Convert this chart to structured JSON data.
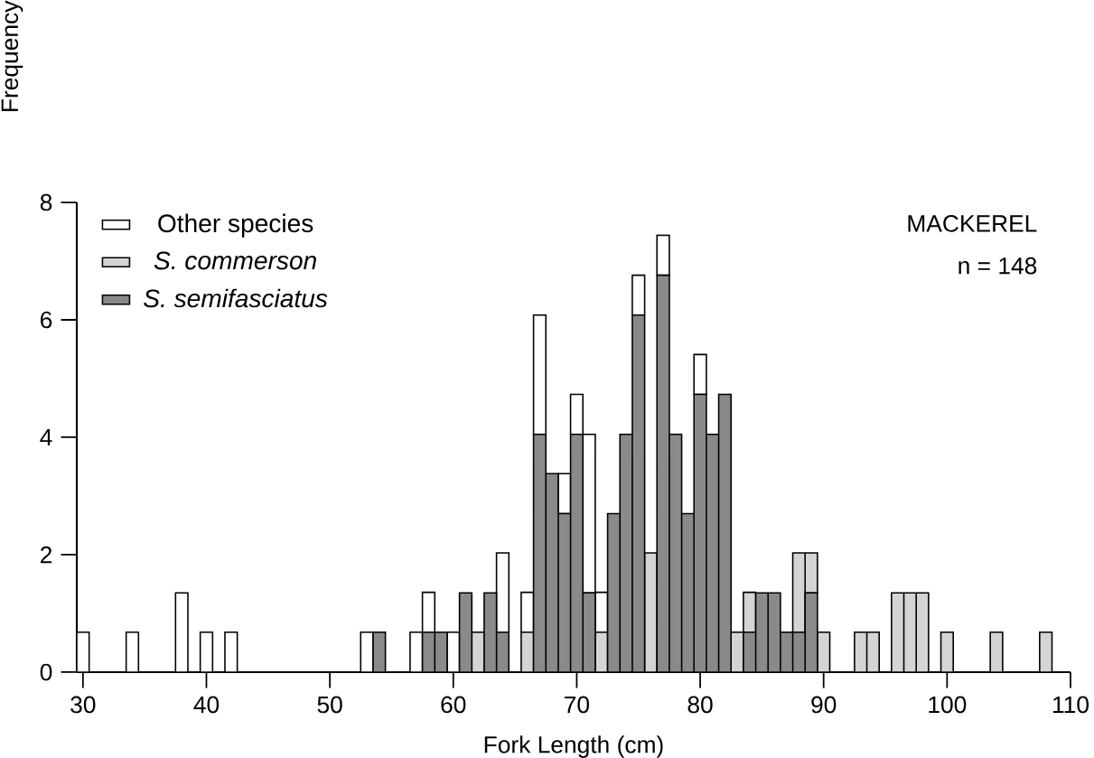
{
  "chart_data": {
    "type": "bar",
    "xlabel": "Fork  Length  (cm)",
    "ylabel": "Frequency",
    "annotations": [
      "MACKEREL",
      "n = 148"
    ],
    "x": [
      30,
      31,
      32,
      33,
      34,
      35,
      36,
      37,
      38,
      39,
      40,
      41,
      42,
      43,
      44,
      45,
      46,
      47,
      48,
      49,
      50,
      51,
      52,
      53,
      54,
      55,
      56,
      57,
      58,
      59,
      60,
      61,
      62,
      63,
      64,
      65,
      66,
      67,
      68,
      69,
      70,
      71,
      72,
      73,
      74,
      75,
      76,
      77,
      78,
      79,
      80,
      81,
      82,
      83,
      84,
      85,
      86,
      87,
      88,
      89,
      90,
      91,
      92,
      93,
      94,
      95,
      96,
      97,
      98,
      99,
      100,
      101,
      102,
      103,
      104,
      105,
      106,
      107,
      108
    ],
    "stacked": true,
    "series": [
      {
        "name": "S. semifasciatus",
        "color": "#8a8a8a",
        "values": [
          0,
          0,
          0,
          0,
          0,
          0,
          0,
          0,
          0,
          0,
          0,
          0,
          0,
          0,
          0,
          0,
          0,
          0,
          0,
          0,
          0,
          0,
          0,
          0,
          0.68,
          0,
          0,
          0,
          0.68,
          0.68,
          0,
          1.35,
          0,
          1.35,
          0.68,
          0,
          0,
          4.05,
          3.38,
          2.7,
          4.05,
          1.35,
          0,
          2.7,
          4.05,
          6.08,
          0,
          6.76,
          4.05,
          2.7,
          4.73,
          4.05,
          4.73,
          0,
          0.68,
          1.35,
          1.35,
          0.68,
          0.68,
          1.35,
          0,
          0,
          0,
          0,
          0,
          0,
          0,
          0,
          0,
          0,
          0,
          0,
          0,
          0,
          0,
          0,
          0,
          0,
          0
        ]
      },
      {
        "name": "S. commerson",
        "color": "#d4d4d4",
        "values": [
          0,
          0,
          0,
          0,
          0,
          0,
          0,
          0,
          0,
          0,
          0,
          0,
          0,
          0,
          0,
          0,
          0,
          0,
          0,
          0,
          0,
          0,
          0,
          0,
          0,
          0,
          0,
          0,
          0,
          0,
          0,
          0,
          0.68,
          0,
          0,
          0,
          0.68,
          0,
          0,
          0,
          0,
          0,
          0.68,
          0,
          0,
          0,
          2.03,
          0,
          0,
          0,
          0,
          0,
          0,
          0.68,
          0.68,
          0,
          0,
          0,
          1.35,
          0.68,
          0.68,
          0,
          0,
          0.68,
          0.68,
          0,
          1.35,
          1.35,
          1.35,
          0,
          0.68,
          0,
          0,
          0,
          0.68,
          0,
          0,
          0,
          0.68
        ]
      },
      {
        "name": "Other species",
        "color": "#ffffff",
        "values": [
          0.68,
          0,
          0,
          0,
          0.68,
          0,
          0,
          0,
          1.35,
          0,
          0.68,
          0,
          0.68,
          0,
          0,
          0,
          0,
          0,
          0,
          0,
          0,
          0,
          0,
          0.68,
          0,
          0,
          0,
          0.68,
          0.68,
          0,
          0.68,
          0,
          0,
          0,
          1.35,
          0,
          0.68,
          2.03,
          0,
          0.68,
          0.68,
          2.7,
          0.68,
          0,
          0,
          0.68,
          0,
          0.68,
          0,
          0,
          0.68,
          0,
          0,
          0,
          0,
          0,
          0,
          0,
          0,
          0,
          0,
          0,
          0,
          0,
          0,
          0,
          0,
          0,
          0,
          0,
          0,
          0,
          0,
          0,
          0,
          0,
          0,
          0,
          0
        ]
      }
    ],
    "xlim": [
      29.5,
      110
    ],
    "xticks": [
      30,
      40,
      50,
      60,
      70,
      80,
      90,
      100,
      110
    ],
    "ylim": [
      0,
      8
    ],
    "yticks": [
      0,
      2,
      4,
      6,
      8
    ],
    "legend": "top left"
  }
}
